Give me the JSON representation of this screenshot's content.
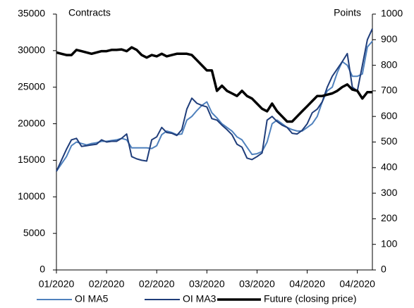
{
  "chart_data": {
    "type": "line",
    "y_label": "Contracts",
    "y2_label": "Points",
    "categories": [
      "01/2020",
      null,
      null,
      null,
      null,
      null,
      null,
      null,
      null,
      null,
      "02/2020",
      null,
      null,
      null,
      null,
      null,
      null,
      null,
      null,
      null,
      "02/2020",
      null,
      null,
      null,
      null,
      null,
      null,
      null,
      null,
      null,
      "03/2020",
      null,
      null,
      null,
      null,
      null,
      null,
      null,
      null,
      null,
      "03/2020",
      null,
      null,
      null,
      null,
      null,
      null,
      null,
      null,
      null,
      "04/2020",
      null,
      null,
      null,
      null,
      null,
      null,
      null,
      null,
      null,
      "04/2020",
      null,
      null,
      null
    ],
    "series": [
      {
        "name": "OI MA5",
        "color": "#4f81bd",
        "width": 2,
        "values": [
          13500,
          14500,
          15500,
          17000,
          17500,
          17300,
          17100,
          17300,
          17400,
          17600,
          17600,
          17700,
          17800,
          18000,
          17800,
          16700,
          16700,
          16700,
          16700,
          16600,
          17000,
          18500,
          19000,
          18800,
          18500,
          18600,
          20500,
          21000,
          21800,
          22500,
          23000,
          21500,
          20800,
          20000,
          19500,
          19000,
          18200,
          17800,
          16800,
          15800,
          15900,
          16200,
          17500,
          20000,
          20500,
          20000,
          19500,
          19200,
          19000,
          19000,
          19500,
          20000,
          21000,
          23000,
          24500,
          25000,
          27000,
          28500,
          28000,
          26500,
          26500,
          26800,
          30500,
          31300
        ]
      },
      {
        "name": "OI MA3",
        "color": "#1f3d7a",
        "width": 2,
        "values": [
          13500,
          15000,
          16500,
          17800,
          18000,
          16900,
          17000,
          17100,
          17200,
          17800,
          17500,
          17600,
          17600,
          18000,
          18600,
          15500,
          15200,
          15000,
          14900,
          17800,
          18200,
          19500,
          18800,
          18700,
          18400,
          19200,
          22000,
          23500,
          22800,
          22500,
          22300,
          20700,
          20500,
          19800,
          19200,
          18500,
          17200,
          16800,
          15300,
          15100,
          15500,
          16000,
          20500,
          21000,
          20300,
          19800,
          19500,
          18700,
          18600,
          19100,
          20000,
          21500,
          22000,
          23000,
          25000,
          26500,
          27500,
          28500,
          29600,
          25000,
          24500,
          28000,
          31500,
          33000
        ]
      },
      {
        "name": "Future (closing price)",
        "color": "#000000",
        "width": 3.5,
        "axis": "y2",
        "values": [
          850,
          845,
          840,
          840,
          860,
          855,
          850,
          845,
          850,
          855,
          855,
          860,
          860,
          862,
          855,
          870,
          860,
          840,
          830,
          840,
          835,
          845,
          835,
          840,
          845,
          845,
          845,
          840,
          820,
          800,
          780,
          780,
          700,
          720,
          700,
          690,
          680,
          700,
          680,
          670,
          650,
          630,
          620,
          650,
          620,
          600,
          580,
          580,
          600,
          620,
          640,
          660,
          680,
          680,
          685,
          690,
          700,
          715,
          725,
          705,
          700,
          670,
          695,
          695
        ]
      }
    ],
    "ylim": [
      0,
      35000
    ],
    "yticks": [
      0,
      5000,
      10000,
      15000,
      20000,
      25000,
      30000,
      35000
    ],
    "y2lim": [
      0,
      1000
    ],
    "y2ticks": [
      0,
      100,
      200,
      300,
      400,
      500,
      600,
      700,
      800,
      900,
      1000
    ],
    "legend": "bottom"
  }
}
